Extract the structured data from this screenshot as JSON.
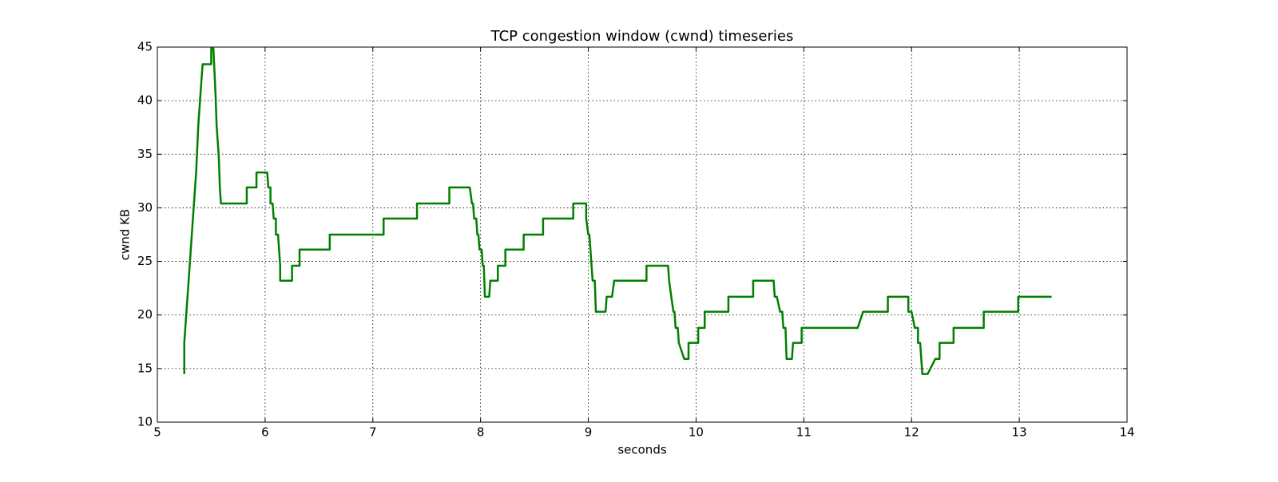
{
  "chart_data": {
    "type": "line",
    "title": "TCP congestion window (cwnd) timeseries",
    "x_label": "seconds",
    "y_label": "cwnd KB",
    "xlim": [
      5,
      14
    ],
    "xticks": [
      5,
      6,
      7,
      8,
      9,
      10,
      11,
      12,
      13,
      14
    ],
    "ylim": [
      10,
      45
    ],
    "yticks": [
      10,
      15,
      20,
      25,
      30,
      35,
      40,
      45
    ],
    "grid": true,
    "series": [
      {
        "color": "#007f00",
        "x": [
          5.25,
          5.25,
          5.27,
          5.3,
          5.33,
          5.36,
          5.38,
          5.4,
          5.42,
          5.5,
          5.5,
          5.52,
          5.54,
          5.55,
          5.57,
          5.58,
          5.59,
          5.83,
          5.83,
          5.92,
          5.92,
          6.02,
          6.03,
          6.05,
          6.05,
          6.07,
          6.08,
          6.1,
          6.1,
          6.12,
          6.14,
          6.14,
          6.25,
          6.25,
          6.32,
          6.32,
          6.6,
          6.6,
          7.1,
          7.1,
          7.41,
          7.41,
          7.71,
          7.71,
          7.9,
          7.92,
          7.93,
          7.94,
          7.96,
          7.97,
          7.98,
          7.99,
          8.01,
          8.02,
          8.03,
          8.04,
          8.08,
          8.09,
          8.16,
          8.16,
          8.23,
          8.23,
          8.4,
          8.4,
          8.58,
          8.58,
          8.86,
          8.86,
          8.98,
          8.98,
          9.0,
          9.01,
          9.03,
          9.04,
          9.06,
          9.07,
          9.16,
          9.17,
          9.22,
          9.24,
          9.54,
          9.54,
          9.74,
          9.75,
          9.77,
          9.79,
          9.8,
          9.81,
          9.83,
          9.84,
          9.89,
          9.93,
          9.93,
          10.02,
          10.02,
          10.08,
          10.08,
          10.3,
          10.3,
          10.53,
          10.53,
          10.72,
          10.73,
          10.75,
          10.78,
          10.8,
          10.81,
          10.83,
          10.84,
          10.89,
          10.9,
          10.98,
          10.98,
          11.5,
          11.55,
          11.78,
          11.78,
          11.97,
          11.97,
          12.0,
          12.03,
          12.06,
          12.06,
          12.08,
          12.1,
          12.15,
          12.22,
          12.26,
          12.26,
          12.39,
          12.39,
          12.67,
          12.67,
          12.99,
          12.99,
          13.3
        ],
        "values": [
          14.5,
          17.4,
          20.3,
          24.6,
          29.0,
          33.3,
          37.7,
          40.6,
          43.4,
          43.4,
          44.9,
          44.9,
          40.6,
          37.7,
          34.8,
          31.9,
          30.4,
          30.4,
          31.9,
          31.9,
          33.3,
          33.3,
          31.9,
          31.9,
          30.4,
          30.4,
          29.0,
          29.0,
          27.5,
          27.5,
          24.6,
          23.2,
          23.2,
          24.6,
          24.6,
          26.1,
          26.1,
          27.5,
          27.5,
          29.0,
          29.0,
          30.4,
          30.4,
          31.9,
          31.9,
          30.4,
          30.4,
          29.0,
          29.0,
          27.5,
          27.5,
          26.1,
          26.1,
          24.6,
          24.6,
          21.7,
          21.7,
          23.2,
          23.2,
          24.6,
          24.6,
          26.1,
          26.1,
          27.5,
          27.5,
          29.0,
          29.0,
          30.4,
          30.4,
          29.0,
          27.5,
          27.5,
          24.6,
          23.2,
          23.2,
          20.3,
          20.3,
          21.7,
          21.7,
          23.2,
          23.2,
          24.6,
          24.6,
          23.2,
          21.7,
          20.3,
          20.3,
          18.8,
          18.8,
          17.4,
          15.9,
          15.9,
          17.4,
          17.4,
          18.8,
          18.8,
          20.3,
          20.3,
          21.7,
          21.7,
          23.2,
          23.2,
          21.7,
          21.7,
          20.3,
          20.3,
          18.8,
          18.8,
          15.9,
          15.9,
          17.4,
          17.4,
          18.8,
          18.8,
          20.3,
          20.3,
          21.7,
          21.7,
          20.3,
          20.3,
          18.8,
          18.8,
          17.4,
          17.4,
          14.5,
          14.5,
          15.9,
          15.9,
          17.4,
          17.4,
          18.8,
          18.8,
          20.3,
          20.3,
          21.7,
          21.7
        ]
      }
    ]
  }
}
